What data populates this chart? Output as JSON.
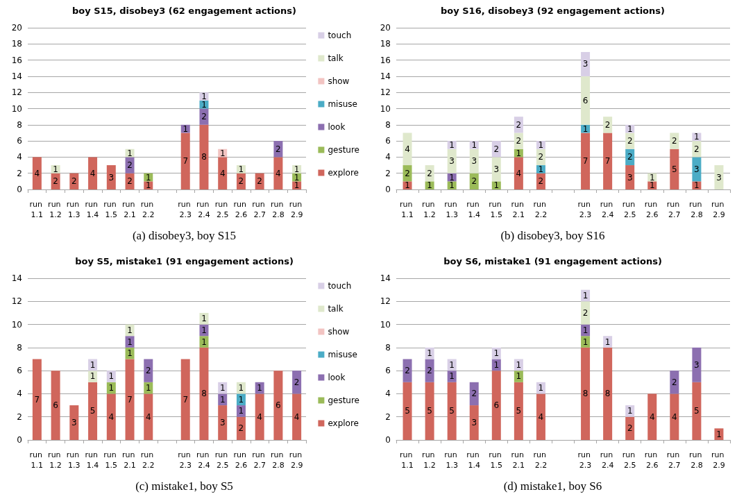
{
  "chart_data": [
    {
      "type": "bar",
      "title": "boy S15, disobey3 (62 engagement actions)",
      "annotations": [
        "(a) disobey3, boy S15"
      ],
      "stacked": true,
      "data_labels": true,
      "grid": "y",
      "legend": "right",
      "ylim": [
        0,
        20
      ],
      "yticks": [
        0,
        2,
        4,
        6,
        8,
        10,
        12,
        14,
        16,
        18,
        20
      ],
      "categories": [
        "run 1.1",
        "run 1.2",
        "run 1.3",
        "run 1.4",
        "run 1.5",
        "run 2.1",
        "run 2.2",
        null,
        "run 2.3",
        "run 2.4",
        "run 2.5",
        "run 2.6",
        "run 2.7",
        "run 2.8",
        "run 2.9"
      ],
      "series": [
        {
          "name": "explore",
          "color": "#d0665c",
          "values": [
            4,
            2,
            2,
            4,
            3,
            2,
            1,
            null,
            7,
            8,
            4,
            2,
            2,
            4,
            1
          ]
        },
        {
          "name": "gesture",
          "color": "#9bbb59",
          "values": [
            null,
            null,
            null,
            null,
            null,
            null,
            1,
            null,
            null,
            null,
            null,
            null,
            null,
            null,
            1
          ]
        },
        {
          "name": "look",
          "color": "#8c6fb0",
          "values": [
            null,
            null,
            null,
            null,
            null,
            2,
            null,
            null,
            1,
            2,
            null,
            null,
            null,
            2,
            null
          ]
        },
        {
          "name": "misuse",
          "color": "#4bacc6",
          "values": [
            null,
            null,
            null,
            null,
            null,
            null,
            null,
            null,
            null,
            1,
            null,
            null,
            null,
            null,
            null
          ]
        },
        {
          "name": "show",
          "color": "#f2c4c2",
          "values": [
            null,
            null,
            null,
            null,
            null,
            null,
            null,
            null,
            null,
            null,
            1,
            null,
            null,
            null,
            null
          ]
        },
        {
          "name": "talk",
          "color": "#dfe8cc",
          "values": [
            null,
            1,
            null,
            null,
            null,
            1,
            null,
            null,
            null,
            null,
            null,
            1,
            null,
            null,
            1
          ]
        },
        {
          "name": "touch",
          "color": "#d8cfe6",
          "values": [
            null,
            null,
            null,
            null,
            null,
            null,
            null,
            null,
            null,
            1,
            null,
            null,
            null,
            null,
            null
          ]
        }
      ]
    },
    {
      "type": "bar",
      "title": "boy S16, disobey3 (92 engagement actions)",
      "annotations": [
        "(b) disobey3, boy S16"
      ],
      "stacked": true,
      "data_labels": true,
      "grid": "y",
      "ylim": [
        0,
        20
      ],
      "yticks": [
        0,
        2,
        4,
        6,
        8,
        10,
        12,
        14,
        16,
        18,
        20
      ],
      "categories": [
        "run 1.1",
        "run 1.2",
        "run 1.3",
        "run 1.4",
        "run 1.5",
        "run 2.1",
        "run 2.2",
        null,
        "run 2.3",
        "run 2.4",
        "run 2.5",
        "run 2.6",
        "run 2.7",
        "run 2.8",
        "run 2.9"
      ],
      "series": [
        {
          "color": "#d0665c",
          "values": [
            1,
            null,
            null,
            null,
            null,
            4,
            2,
            null,
            7,
            7,
            3,
            1,
            5,
            1,
            null
          ]
        },
        {
          "color": "#9bbb59",
          "values": [
            2,
            1,
            1,
            2,
            1,
            1,
            null,
            null,
            null,
            null,
            null,
            null,
            null,
            null,
            null
          ]
        },
        {
          "color": "#8c6fb0",
          "values": [
            null,
            null,
            1,
            null,
            null,
            null,
            null,
            null,
            null,
            null,
            null,
            null,
            null,
            null,
            null
          ]
        },
        {
          "color": "#4bacc6",
          "values": [
            null,
            null,
            null,
            null,
            null,
            null,
            1,
            null,
            1,
            null,
            2,
            null,
            null,
            3,
            null
          ]
        },
        {
          "color": "#dfe8cc",
          "values": [
            4,
            2,
            3,
            3,
            3,
            2,
            2,
            null,
            6,
            2,
            2,
            1,
            2,
            2,
            3
          ]
        },
        {
          "color": "#d8cfe6",
          "values": [
            null,
            null,
            1,
            1,
            2,
            2,
            1,
            null,
            3,
            null,
            1,
            null,
            null,
            1,
            null
          ]
        }
      ]
    },
    {
      "type": "bar",
      "title": "boy S5, mistake1 (91 engagement actions)",
      "annotations": [
        "(c) mistake1, boy S5"
      ],
      "stacked": true,
      "data_labels": true,
      "grid": "y",
      "legend": "right",
      "ylim": [
        0,
        14
      ],
      "yticks": [
        0,
        2,
        4,
        6,
        8,
        10,
        12,
        14
      ],
      "categories": [
        "run 1.1",
        "run 1.2",
        "run 1.3",
        "run 1.4",
        "run 1.5",
        "run 2.1",
        "run 2.2",
        null,
        "run 2.3",
        "run 2.4",
        "run 2.5",
        "run 2.6",
        "run 2.7",
        "run 2.8",
        "run 2.9"
      ],
      "series": [
        {
          "name": "explore",
          "color": "#d0665c",
          "values": [
            7,
            6,
            3,
            5,
            4,
            7,
            4,
            null,
            7,
            8,
            3,
            2,
            4,
            6,
            4
          ]
        },
        {
          "name": "gesture",
          "color": "#9bbb59",
          "values": [
            null,
            null,
            null,
            null,
            1,
            1,
            1,
            null,
            null,
            1,
            null,
            null,
            null,
            null,
            null
          ]
        },
        {
          "name": "look",
          "color": "#8c6fb0",
          "values": [
            null,
            null,
            null,
            null,
            null,
            1,
            2,
            null,
            null,
            1,
            1,
            1,
            1,
            null,
            2
          ]
        },
        {
          "name": "misuse",
          "color": "#4bacc6",
          "values": [
            null,
            null,
            null,
            null,
            null,
            null,
            null,
            null,
            null,
            null,
            null,
            1,
            null,
            null,
            null
          ]
        },
        {
          "name": "show",
          "color": "#f2c4c2",
          "values": [
            null,
            null,
            null,
            null,
            null,
            null,
            null,
            null,
            null,
            null,
            null,
            null,
            null,
            null,
            null
          ]
        },
        {
          "name": "talk",
          "color": "#dfe8cc",
          "values": [
            null,
            null,
            null,
            1,
            null,
            1,
            null,
            null,
            null,
            1,
            null,
            1,
            null,
            null,
            null
          ]
        },
        {
          "name": "touch",
          "color": "#d8cfe6",
          "values": [
            null,
            null,
            null,
            1,
            1,
            null,
            null,
            null,
            null,
            null,
            1,
            null,
            null,
            null,
            null
          ]
        }
      ]
    },
    {
      "type": "bar",
      "title": "boy S6, mistake1 (91 engagement actions)",
      "annotations": [
        "(d) mistake1, boy S6"
      ],
      "stacked": true,
      "data_labels": true,
      "grid": "y",
      "ylim": [
        0,
        14
      ],
      "yticks": [
        0,
        2,
        4,
        6,
        8,
        10,
        12,
        14
      ],
      "categories": [
        "run 1.1",
        "run 1.2",
        "run 1.3",
        "run 1.4",
        "run 1.5",
        "run 2.1",
        "run 2.2",
        null,
        "run 2.3",
        "run 2.4",
        "run 2.5",
        "run 2.6",
        "run 2.7",
        "run 2.8",
        "run 2.9"
      ],
      "series": [
        {
          "color": "#d0665c",
          "values": [
            5,
            5,
            5,
            3,
            6,
            5,
            4,
            null,
            8,
            8,
            2,
            4,
            4,
            5,
            1
          ]
        },
        {
          "color": "#9bbb59",
          "values": [
            null,
            null,
            null,
            null,
            null,
            1,
            null,
            null,
            1,
            null,
            null,
            null,
            null,
            null,
            null
          ]
        },
        {
          "color": "#8c6fb0",
          "values": [
            2,
            2,
            1,
            2,
            1,
            null,
            null,
            null,
            1,
            null,
            null,
            null,
            2,
            3,
            null
          ]
        },
        {
          "color": "#dfe8cc",
          "values": [
            null,
            null,
            null,
            null,
            null,
            null,
            null,
            null,
            2,
            null,
            null,
            null,
            null,
            null,
            null
          ]
        },
        {
          "color": "#d8cfe6",
          "values": [
            null,
            1,
            1,
            null,
            1,
            1,
            1,
            null,
            1,
            1,
            1,
            null,
            null,
            null,
            null
          ]
        }
      ]
    }
  ]
}
